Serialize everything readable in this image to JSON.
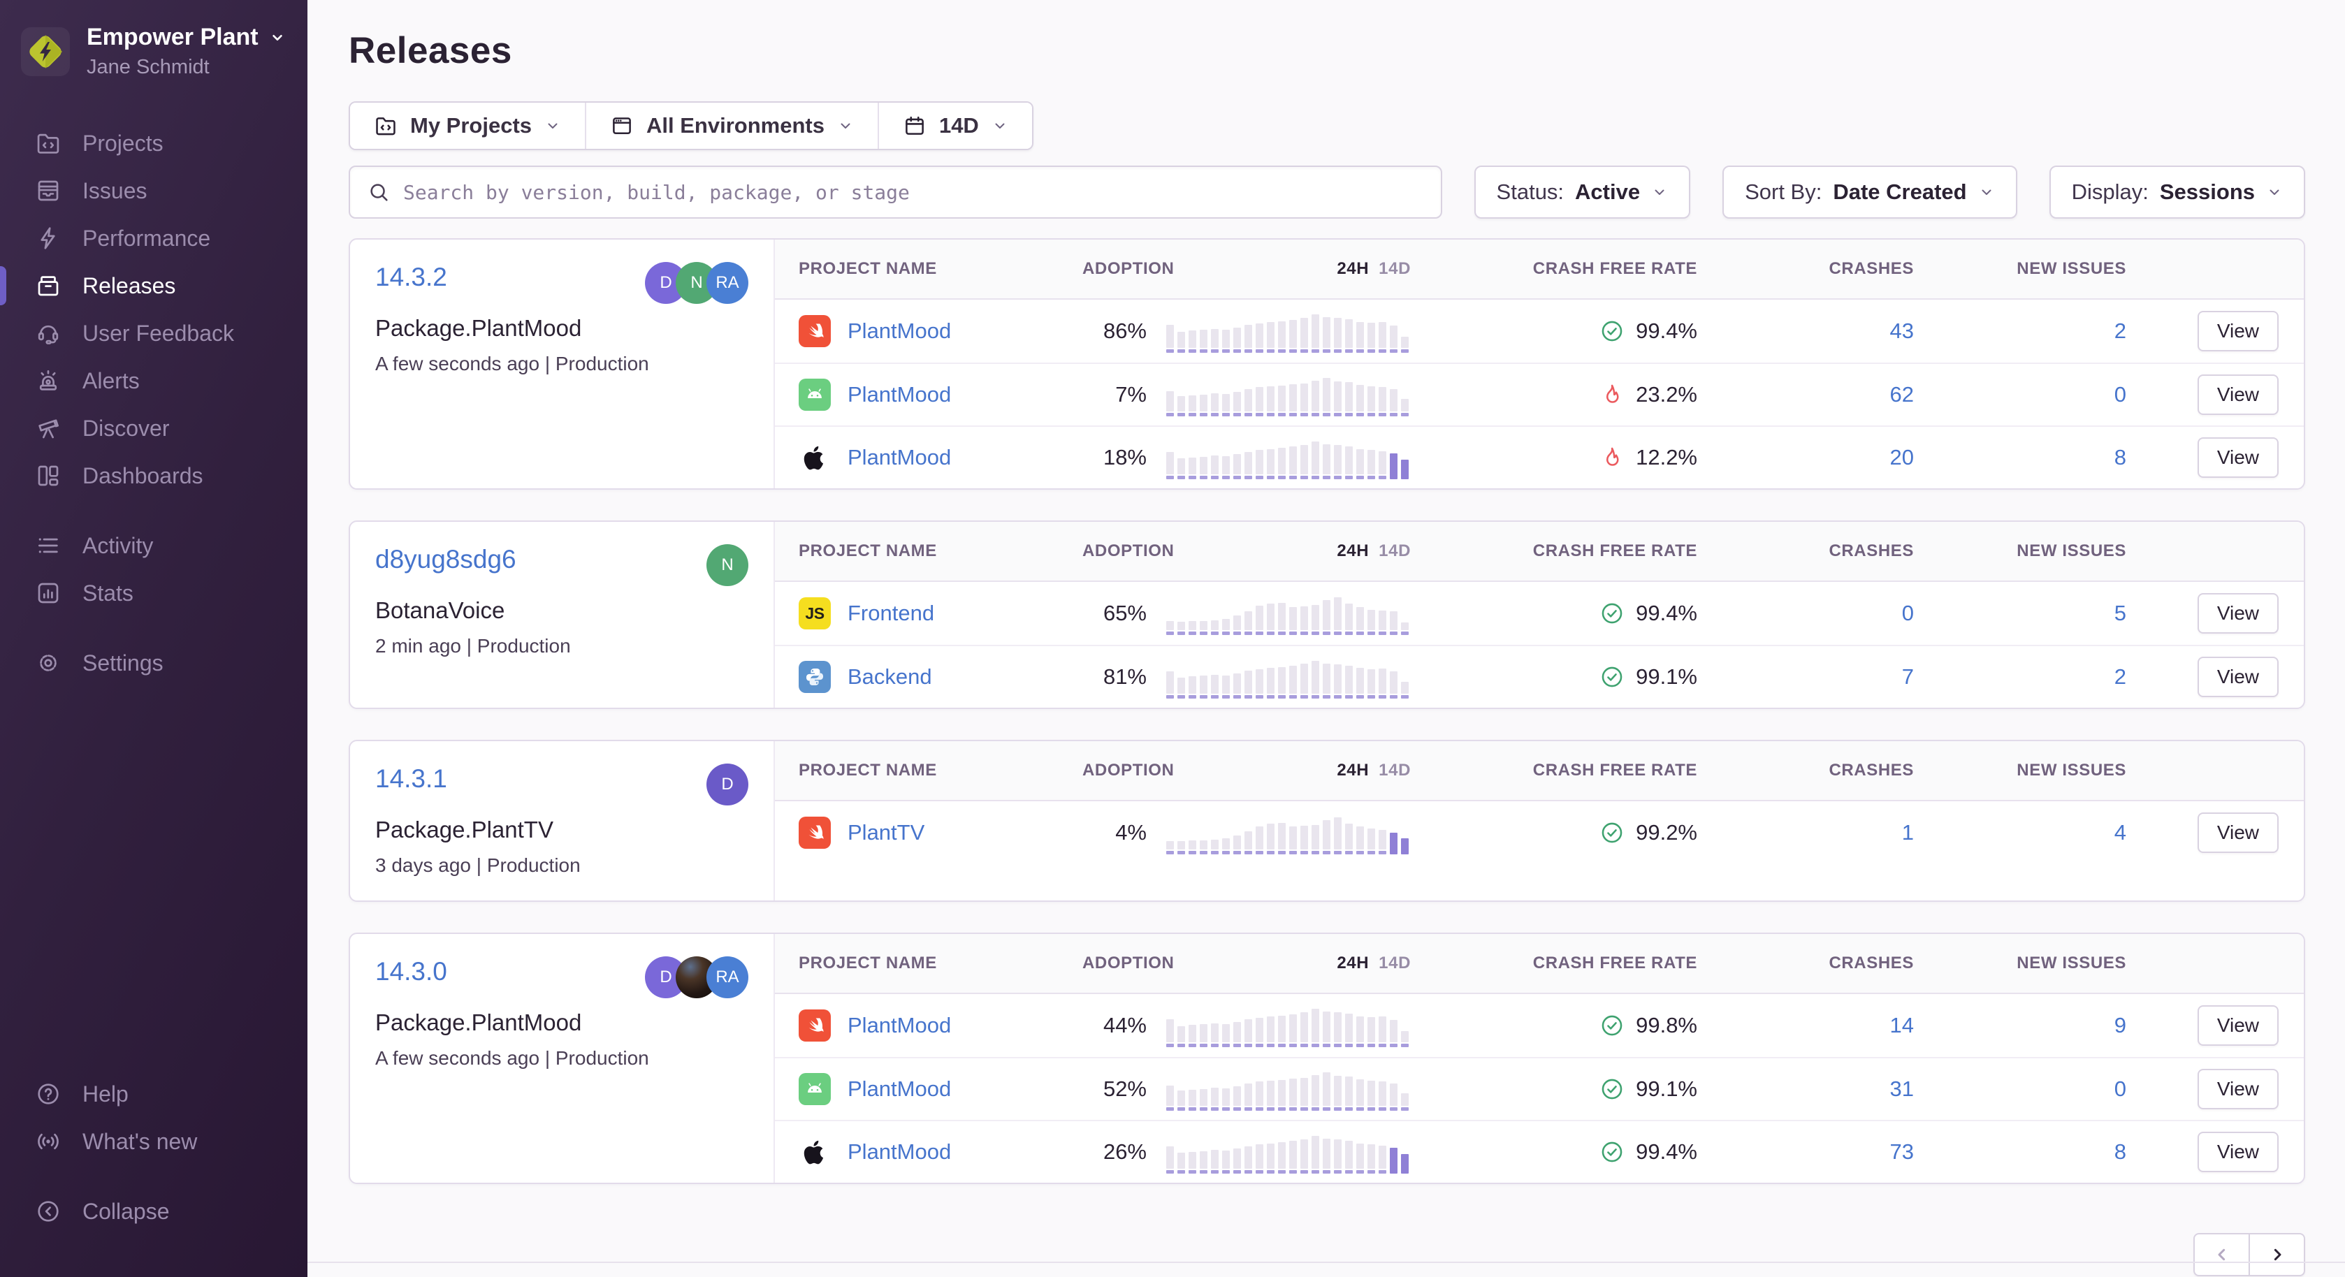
{
  "sidebar": {
    "org_name": "Empower Plant",
    "user_name": "Jane Schmidt",
    "sections": [
      {
        "items": [
          {
            "label": "Projects",
            "icon": "projects"
          },
          {
            "label": "Issues",
            "icon": "issues"
          },
          {
            "label": "Performance",
            "icon": "performance"
          },
          {
            "label": "Releases",
            "icon": "releases",
            "active": true
          },
          {
            "label": "User Feedback",
            "icon": "user-feedback"
          },
          {
            "label": "Alerts",
            "icon": "alerts"
          },
          {
            "label": "Discover",
            "icon": "discover"
          },
          {
            "label": "Dashboards",
            "icon": "dashboards"
          }
        ]
      },
      {
        "items": [
          {
            "label": "Activity",
            "icon": "activity"
          },
          {
            "label": "Stats",
            "icon": "stats"
          }
        ]
      },
      {
        "items": [
          {
            "label": "Settings",
            "icon": "settings"
          }
        ]
      }
    ],
    "footer_sections": [
      {
        "items": [
          {
            "label": "Help",
            "icon": "help"
          },
          {
            "label": "What's new",
            "icon": "whats-new"
          }
        ]
      },
      {
        "items": [
          {
            "label": "Collapse",
            "icon": "collapse"
          }
        ]
      }
    ]
  },
  "header": {
    "title": "Releases"
  },
  "filters": {
    "project": "My Projects",
    "environment": "All Environments",
    "date": "14D"
  },
  "search": {
    "placeholder": "Search by version, build, package, or stage",
    "value": ""
  },
  "controls": [
    {
      "name": "status",
      "label": "Status:",
      "value": "Active"
    },
    {
      "name": "sort-by",
      "label": "Sort By:",
      "value": "Date Created"
    },
    {
      "name": "display",
      "label": "Display:",
      "value": "Sessions"
    }
  ],
  "table_headers": {
    "project": "PROJECT NAME",
    "adoption": "ADOPTION",
    "t24h": "24H",
    "t14d": "14D",
    "crash": "CRASH FREE RATE",
    "crashes": "CRASHES",
    "issues": "NEW ISSUES"
  },
  "view_label": "View",
  "colors": {
    "accent_purple": "#6F5FC6",
    "link_blue": "#4674CC",
    "ok_green": "#3EA26F",
    "critical_red": "#EB5A5E",
    "spark_bar": "#E9E5EE",
    "spark_base": "#A89DDD",
    "spark_highlight": "#8F80D6"
  },
  "releases": [
    {
      "version": "14.3.2",
      "package": "Package.PlantMood",
      "meta": "A few seconds ago | Production",
      "avatars": [
        {
          "text": "D",
          "color": "#7A68D9"
        },
        {
          "text": "N",
          "color": "#52A873"
        },
        {
          "text": "RA",
          "color": "#4A7FD4"
        }
      ],
      "rows": [
        {
          "icon": "swift",
          "project": "PlantMood",
          "adoption": "86%",
          "status": "ok",
          "rate": "99.4%",
          "crashes": "43",
          "issues": "2",
          "hl": 0,
          "spark": [
            0.52,
            0.33,
            0.36,
            0.38,
            0.41,
            0.39,
            0.45,
            0.52,
            0.56,
            0.59,
            0.62,
            0.65,
            0.72,
            0.8,
            0.74,
            0.71,
            0.68,
            0.6,
            0.57,
            0.6,
            0.5,
            0.2
          ]
        },
        {
          "icon": "android",
          "project": "PlantMood",
          "adoption": "7%",
          "status": "crit",
          "rate": "23.2%",
          "crashes": "62",
          "issues": "0",
          "hl": 0,
          "spark": [
            0.45,
            0.3,
            0.33,
            0.35,
            0.38,
            0.36,
            0.42,
            0.5,
            0.55,
            0.58,
            0.6,
            0.63,
            0.66,
            0.74,
            0.8,
            0.72,
            0.7,
            0.62,
            0.58,
            0.55,
            0.5,
            0.24
          ]
        },
        {
          "icon": "apple",
          "project": "PlantMood",
          "adoption": "18%",
          "status": "crit",
          "rate": "12.2%",
          "crashes": "20",
          "issues": "8",
          "hl": 2,
          "spark": [
            0.5,
            0.32,
            0.35,
            0.37,
            0.4,
            0.38,
            0.44,
            0.5,
            0.55,
            0.58,
            0.62,
            0.65,
            0.7,
            0.78,
            0.72,
            0.7,
            0.66,
            0.58,
            0.55,
            0.52,
            0.46,
            0.28
          ]
        }
      ]
    },
    {
      "version": "d8yug8sdg6",
      "package": "BotanaVoice",
      "meta": "2 min ago | Production",
      "avatars": [
        {
          "text": "N",
          "color": "#52A873"
        }
      ],
      "rows": [
        {
          "icon": "js",
          "project": "Frontend",
          "adoption": "65%",
          "status": "ok",
          "rate": "99.4%",
          "crashes": "0",
          "issues": "5",
          "hl": 0,
          "spark": [
            0.13,
            0.12,
            0.13,
            0.13,
            0.15,
            0.2,
            0.28,
            0.4,
            0.55,
            0.62,
            0.64,
            0.52,
            0.54,
            0.57,
            0.72,
            0.78,
            0.62,
            0.52,
            0.45,
            0.43,
            0.4,
            0.1
          ]
        },
        {
          "icon": "python",
          "project": "Backend",
          "adoption": "81%",
          "status": "ok",
          "rate": "99.1%",
          "crashes": "7",
          "issues": "2",
          "hl": 0,
          "spark": [
            0.5,
            0.32,
            0.36,
            0.38,
            0.4,
            0.38,
            0.44,
            0.52,
            0.56,
            0.6,
            0.62,
            0.66,
            0.72,
            0.78,
            0.72,
            0.7,
            0.66,
            0.6,
            0.56,
            0.58,
            0.5,
            0.22
          ]
        }
      ]
    },
    {
      "version": "14.3.1",
      "package": "Package.PlantTV",
      "meta": "3 days ago | Production",
      "avatars": [
        {
          "text": "D",
          "color": "#6A5AC8"
        }
      ],
      "rows": [
        {
          "icon": "swift",
          "project": "PlantTV",
          "adoption": "4%",
          "status": "ok",
          "rate": "99.2%",
          "crashes": "1",
          "issues": "4",
          "hl": 2,
          "spark": [
            0.12,
            0.12,
            0.13,
            0.13,
            0.15,
            0.19,
            0.26,
            0.38,
            0.52,
            0.6,
            0.62,
            0.52,
            0.54,
            0.56,
            0.7,
            0.76,
            0.6,
            0.52,
            0.46,
            0.42,
            0.34,
            0.2
          ]
        }
      ]
    },
    {
      "version": "14.3.0",
      "package": "Package.PlantMood",
      "meta": "A few seconds ago | Production",
      "avatars": [
        {
          "text": "D",
          "color": "#7A68D9"
        },
        {
          "photo": true
        },
        {
          "text": "RA",
          "color": "#4A7FD4"
        }
      ],
      "rows": [
        {
          "icon": "swift",
          "project": "PlantMood",
          "adoption": "44%",
          "status": "ok",
          "rate": "99.8%",
          "crashes": "14",
          "issues": "9",
          "hl": 0,
          "spark": [
            0.52,
            0.33,
            0.36,
            0.38,
            0.41,
            0.39,
            0.45,
            0.52,
            0.56,
            0.59,
            0.62,
            0.65,
            0.72,
            0.8,
            0.74,
            0.71,
            0.68,
            0.6,
            0.57,
            0.6,
            0.5,
            0.2
          ]
        },
        {
          "icon": "android",
          "project": "PlantMood",
          "adoption": "52%",
          "status": "ok",
          "rate": "99.1%",
          "crashes": "31",
          "issues": "0",
          "hl": 0,
          "spark": [
            0.45,
            0.3,
            0.33,
            0.35,
            0.38,
            0.36,
            0.42,
            0.5,
            0.55,
            0.58,
            0.6,
            0.63,
            0.66,
            0.74,
            0.8,
            0.72,
            0.7,
            0.62,
            0.58,
            0.55,
            0.5,
            0.24
          ]
        },
        {
          "icon": "apple",
          "project": "PlantMood",
          "adoption": "26%",
          "status": "ok",
          "rate": "99.4%",
          "crashes": "73",
          "issues": "8",
          "hl": 2,
          "spark": [
            0.5,
            0.32,
            0.35,
            0.37,
            0.4,
            0.38,
            0.44,
            0.5,
            0.55,
            0.58,
            0.62,
            0.65,
            0.7,
            0.78,
            0.72,
            0.7,
            0.66,
            0.58,
            0.55,
            0.52,
            0.46,
            0.28
          ]
        }
      ]
    }
  ]
}
